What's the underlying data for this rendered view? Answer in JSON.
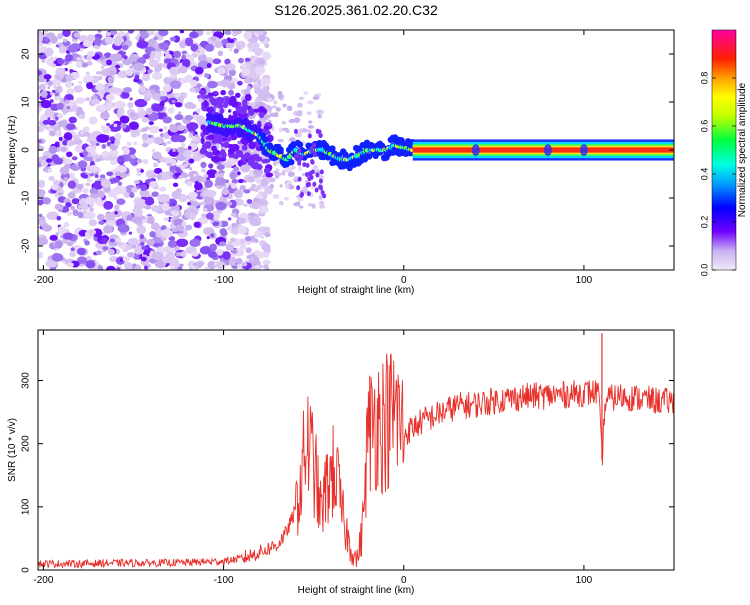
{
  "title": "S126.2025.361.02.20.C32",
  "chart_data": [
    {
      "type": "heatmap",
      "title": "S126.2025.361.02.20.C32",
      "xlabel": "Height of straight line (km)",
      "ylabel": "Frequency (Hz)",
      "xlim": [
        -203,
        150
      ],
      "ylim": [
        -25,
        25
      ],
      "xticks": [
        -200,
        -100,
        0,
        100
      ],
      "yticks": [
        -20,
        -10,
        0,
        10,
        20
      ],
      "colorbar": {
        "label": "Normalized spectral amplitude",
        "range": [
          0,
          1
        ],
        "ticks": [
          0.0,
          0.2,
          0.4,
          0.6,
          0.8
        ],
        "colors": [
          "#d8c8f0",
          "#7000ff",
          "#0000ff",
          "#00ffff",
          "#00ff00",
          "#ffff00",
          "#ff8000",
          "#ff0000",
          "#ff00a0"
        ]
      },
      "signal_track": {
        "x": [
          -110,
          -100,
          -90,
          -80,
          -75,
          -70,
          -65,
          -60,
          -55,
          -50,
          -45,
          -40,
          -35,
          -30,
          -25,
          -20,
          -15,
          -10,
          -5,
          0,
          5,
          10,
          150
        ],
        "frequency": [
          6,
          5,
          5,
          3,
          0,
          -1,
          -2,
          0,
          -1,
          0,
          0,
          -1,
          -2,
          -2,
          -1,
          0,
          0,
          0,
          1,
          0.5,
          0,
          0,
          0
        ]
      }
    },
    {
      "type": "line",
      "xlabel": "Height of straight line (km)",
      "ylabel": "SNR (10 * v/v)",
      "xlim": [
        -203,
        150
      ],
      "ylim": [
        0,
        380
      ],
      "xticks": [
        -200,
        -100,
        0,
        100
      ],
      "yticks": [
        0,
        100,
        200,
        300
      ],
      "series": [
        {
          "name": "SNR",
          "color": "#e8302a",
          "x": [
            -203,
            -180,
            -160,
            -140,
            -120,
            -100,
            -90,
            -80,
            -70,
            -65,
            -60,
            -57,
            -54,
            -50,
            -46,
            -42,
            -38,
            -34,
            -30,
            -26,
            -23,
            -20,
            -16,
            -12,
            -8,
            -4,
            0,
            10,
            20,
            30,
            40,
            50,
            60,
            70,
            80,
            90,
            100,
            108,
            110,
            112,
            120,
            130,
            140,
            150
          ],
          "values": [
            10,
            10,
            11,
            11,
            12,
            14,
            18,
            28,
            40,
            60,
            95,
            140,
            205,
            170,
            90,
            140,
            160,
            85,
            40,
            15,
            60,
            210,
            240,
            235,
            240,
            250,
            215,
            235,
            248,
            260,
            262,
            268,
            272,
            275,
            276,
            278,
            280,
            282,
            175,
            270,
            275,
            272,
            268,
            266
          ]
        }
      ]
    }
  ]
}
